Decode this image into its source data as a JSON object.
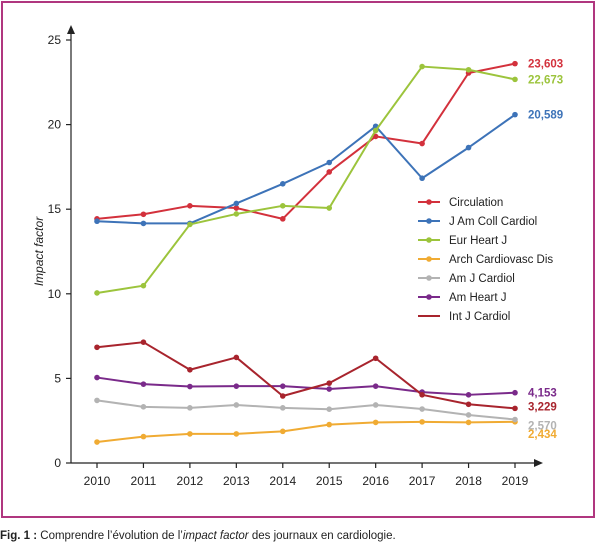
{
  "chart_data": {
    "type": "line",
    "ylabel": "Impact factor",
    "xlabel": "",
    "ylim": [
      0,
      25
    ],
    "yticks": [
      "0",
      "5",
      "10",
      "15",
      "20",
      "25"
    ],
    "categories": [
      "2010",
      "2011",
      "2012",
      "2013",
      "2014",
      "2015",
      "2016",
      "2017",
      "2018",
      "2019"
    ],
    "legend_position": "right-middle",
    "grid": false,
    "series": [
      {
        "name": "Circulation",
        "color": "#d3313c",
        "values": [
          14.43,
          14.7,
          15.2,
          15.07,
          14.43,
          17.2,
          19.3,
          18.88,
          23.05,
          23.603
        ],
        "end_label": "23,603"
      },
      {
        "name": "J Am Coll Cardiol",
        "color": "#3d73b8",
        "values": [
          14.29,
          14.16,
          14.16,
          15.34,
          16.5,
          17.76,
          19.9,
          16.83,
          18.64,
          20.589
        ],
        "end_label": "20,589"
      },
      {
        "name": "Eur Heart J",
        "color": "#9cc43c",
        "values": [
          10.05,
          10.48,
          14.1,
          14.72,
          15.2,
          15.07,
          19.65,
          23.43,
          23.24,
          22.673
        ],
        "end_label": "22,673"
      },
      {
        "name": "Arch Cardiovasc Dis",
        "color": "#f0ab33",
        "values": [
          1.24,
          1.56,
          1.72,
          1.72,
          1.87,
          2.27,
          2.4,
          2.43,
          2.4,
          2.434
        ],
        "end_label": "2,434"
      },
      {
        "name": "Am J Cardiol",
        "color": "#b3b3b3",
        "values": [
          3.7,
          3.32,
          3.26,
          3.43,
          3.26,
          3.18,
          3.43,
          3.19,
          2.84,
          2.57
        ],
        "end_label": "2,570"
      },
      {
        "name": "Am Heart J",
        "color": "#7a2a8a",
        "values": [
          5.05,
          4.66,
          4.52,
          4.54,
          4.54,
          4.37,
          4.54,
          4.19,
          4.03,
          4.153
        ],
        "end_label": "4,153"
      },
      {
        "name": "Int J Cardiol",
        "color": "#a8242d",
        "values": [
          6.84,
          7.14,
          5.51,
          6.24,
          3.96,
          4.72,
          6.19,
          4.03,
          3.47,
          3.229
        ],
        "end_label": "3,229"
      }
    ]
  },
  "caption": {
    "prefix": "Fig. 1 :",
    "text_before": " Comprendre l’évolution de l’",
    "emphasis": "impact factor",
    "text_after": " des journaux en cardiologie."
  }
}
